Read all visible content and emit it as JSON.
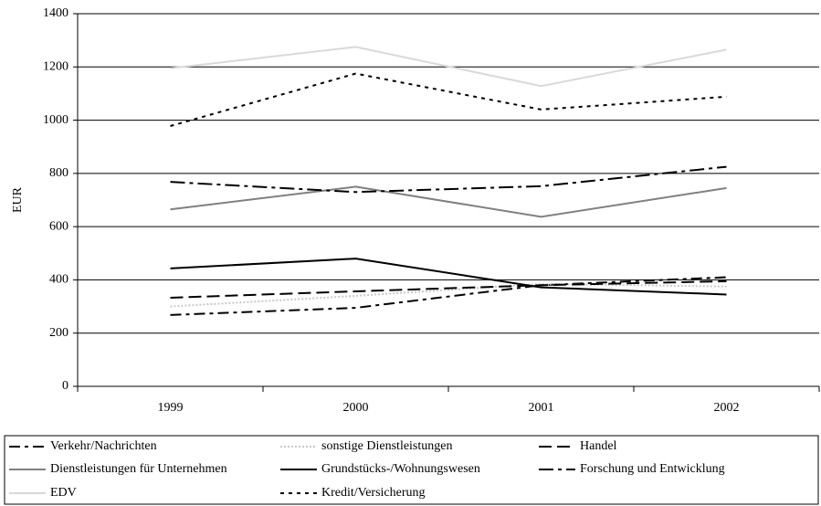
{
  "chart_data": {
    "type": "line",
    "y_label": "EUR",
    "categories": [
      "1999",
      "2000",
      "2001",
      "2002"
    ],
    "ylim": [
      0,
      1400
    ],
    "yticks": [
      0,
      200,
      400,
      600,
      800,
      1000,
      1200,
      1400
    ],
    "grid": true,
    "series": [
      {
        "name": "Verkehr/Nachrichten",
        "color": "#000000",
        "dash": "dash-dot",
        "values": [
          268,
          295,
          380,
          410
        ]
      },
      {
        "name": "sonstige Dienstleistungen",
        "color": "#c8c8c8",
        "dash": "dotted",
        "values": [
          300,
          340,
          385,
          375
        ]
      },
      {
        "name": "Handel",
        "color": "#000000",
        "dash": "dashed",
        "values": [
          333,
          357,
          380,
          395
        ]
      },
      {
        "name": "Dienstleistungen für Unternehmen",
        "color": "#808080",
        "dash": "solid",
        "values": [
          665,
          750,
          637,
          745
        ]
      },
      {
        "name": "Grundstücks-/Wohnungswesen",
        "color": "#000000",
        "dash": "solid",
        "values": [
          443,
          480,
          372,
          345
        ]
      },
      {
        "name": "Forschung und Entwicklung",
        "color": "#000000",
        "dash": "long-dash-dot",
        "values": [
          768,
          730,
          752,
          825
        ]
      },
      {
        "name": "EDV",
        "color": "#d9d9d9",
        "dash": "solid",
        "values": [
          1195,
          1275,
          1128,
          1265
        ]
      },
      {
        "name": "Kredit/Versicherung",
        "color": "#000000",
        "dash": "short-dash",
        "values": [
          978,
          1175,
          1040,
          1088
        ]
      }
    ]
  }
}
